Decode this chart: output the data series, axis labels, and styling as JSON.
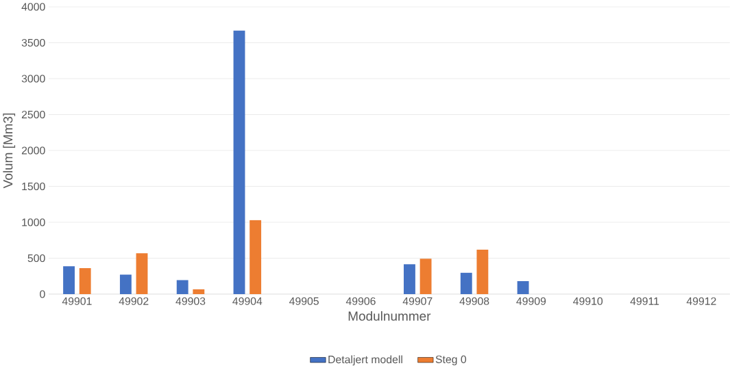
{
  "chart_data": {
    "type": "bar",
    "xlabel": "Modulnummer",
    "ylabel": "Volum [Mm3]",
    "categories": [
      "49901",
      "49902",
      "49903",
      "49904",
      "49905",
      "49906",
      "49907",
      "49908",
      "49909",
      "49910",
      "49911",
      "49912"
    ],
    "series": [
      {
        "name": "Detaljert modell",
        "color": "#4472c4",
        "values": [
          387,
          272,
          195,
          3670,
          0,
          0,
          416,
          297,
          181,
          0,
          0,
          0
        ]
      },
      {
        "name": "Steg 0",
        "color": "#ed7d31",
        "values": [
          362,
          570,
          67,
          1032,
          0,
          0,
          493,
          619,
          0,
          0,
          0,
          0
        ]
      }
    ],
    "ylim": [
      0,
      4000
    ],
    "yticks": [
      0,
      500,
      1000,
      1500,
      2000,
      2500,
      3000,
      3500,
      4000
    ],
    "grid": "y",
    "legend": "bottom"
  }
}
